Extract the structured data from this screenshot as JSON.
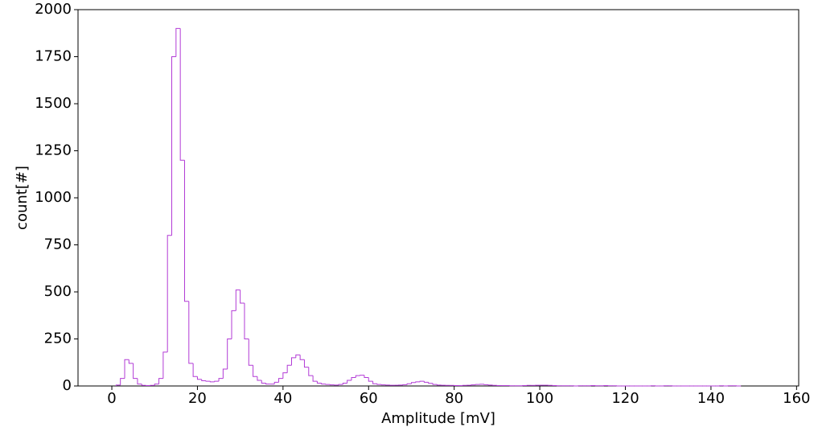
{
  "chart_data": {
    "type": "histogram",
    "x_label": "Amplitude [mV]",
    "y_label": "count[#]",
    "color": "#b23bd6",
    "bins": [
      1,
      2,
      3,
      4,
      5,
      6,
      7,
      8,
      9,
      10,
      11,
      12,
      13,
      14,
      15,
      16,
      17,
      18,
      19,
      20,
      21,
      22,
      23,
      24,
      25,
      26,
      27,
      28,
      29,
      30,
      31,
      32,
      33,
      34,
      35,
      36,
      37,
      38,
      39,
      40,
      41,
      42,
      43,
      44,
      45,
      46,
      47,
      48,
      49,
      50,
      51,
      52,
      53,
      54,
      55,
      56,
      57,
      58,
      59,
      60,
      61,
      62,
      63,
      64,
      65,
      66,
      67,
      68,
      69,
      70,
      71,
      72,
      73,
      74,
      75,
      76,
      77,
      78,
      79,
      80,
      81,
      82,
      83,
      84,
      85,
      86,
      87,
      88,
      89,
      90,
      91,
      92,
      93,
      94,
      95,
      96,
      97,
      98,
      99,
      100,
      101,
      102,
      103,
      104,
      105,
      106,
      107,
      108,
      109,
      110,
      111,
      112,
      113,
      114,
      115,
      116,
      117,
      118,
      119,
      120,
      121,
      122,
      123,
      124,
      125,
      126,
      127,
      128,
      129,
      130,
      131,
      132,
      133,
      134,
      135,
      136,
      137,
      138,
      139,
      140,
      141,
      142,
      143,
      144,
      145,
      146,
      147
    ],
    "counts": [
      5,
      40,
      140,
      120,
      40,
      10,
      3,
      2,
      3,
      10,
      40,
      180,
      800,
      1750,
      1900,
      1200,
      450,
      120,
      50,
      35,
      28,
      25,
      22,
      25,
      40,
      90,
      250,
      400,
      510,
      440,
      250,
      110,
      50,
      30,
      15,
      10,
      10,
      20,
      40,
      70,
      110,
      150,
      165,
      140,
      100,
      55,
      25,
      15,
      10,
      8,
      6,
      5,
      8,
      15,
      30,
      45,
      55,
      57,
      45,
      25,
      12,
      8,
      6,
      5,
      4,
      4,
      5,
      7,
      12,
      18,
      22,
      25,
      20,
      14,
      8,
      5,
      4,
      3,
      3,
      2,
      2,
      3,
      4,
      6,
      8,
      9,
      7,
      5,
      3,
      2,
      2,
      2,
      1,
      1,
      1,
      2,
      3,
      3,
      4,
      4,
      4,
      3,
      2,
      1,
      1,
      1,
      1,
      0,
      1,
      1,
      1,
      2,
      1,
      1,
      2,
      1,
      1,
      0,
      0,
      0,
      0,
      0,
      0,
      0,
      0,
      1,
      0,
      0,
      1,
      1,
      0,
      0,
      0,
      0,
      0,
      0,
      0,
      0,
      0,
      0,
      0,
      1,
      0,
      1,
      1,
      0
    ],
    "xlim": [
      -7.9,
      160.5
    ],
    "xticks": [
      0,
      20,
      40,
      60,
      80,
      100,
      120,
      140,
      160
    ],
    "ylim": [
      0,
      2000
    ],
    "yticks": [
      0,
      250,
      500,
      750,
      1000,
      1250,
      1500,
      1750,
      2000
    ]
  }
}
